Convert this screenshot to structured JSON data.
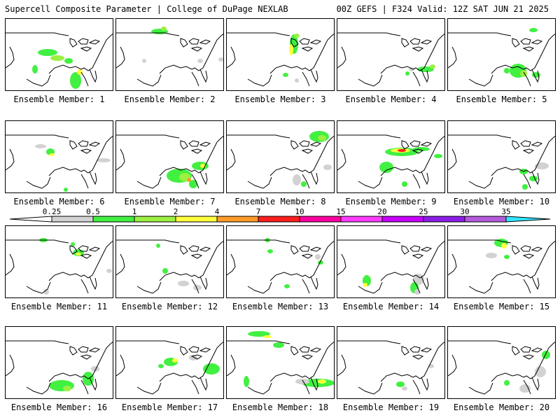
{
  "header": {
    "left_title": "Supercell Composite Parameter | College of DuPage NEXLAB",
    "right_title": "00Z GEFS | F324 Valid: 12Z SAT JUN 21 2025"
  },
  "panels": [
    {
      "label": "Ensemble Member: 1"
    },
    {
      "label": "Ensemble Member: 2"
    },
    {
      "label": "Ensemble Member: 3"
    },
    {
      "label": "Ensemble Member: 4"
    },
    {
      "label": "Ensemble Member: 5"
    },
    {
      "label": "Ensemble Member: 6"
    },
    {
      "label": "Ensemble Member: 7"
    },
    {
      "label": "Ensemble Member: 8"
    },
    {
      "label": "Ensemble Member: 9"
    },
    {
      "label": "Ensemble Member: 10"
    },
    {
      "label": "Ensemble Member: 11"
    },
    {
      "label": "Ensemble Member: 12"
    },
    {
      "label": "Ensemble Member: 13"
    },
    {
      "label": "Ensemble Member: 14"
    },
    {
      "label": "Ensemble Member: 15"
    },
    {
      "label": "Ensemble Member: 16"
    },
    {
      "label": "Ensemble Member: 17"
    },
    {
      "label": "Ensemble Member: 18"
    },
    {
      "label": "Ensemble Member: 19"
    },
    {
      "label": "Ensemble Member: 20"
    }
  ],
  "colorbar": {
    "ticks": [
      "0.25",
      "0.5",
      "1",
      "2",
      "4",
      "7",
      "10",
      "15",
      "20",
      "25",
      "30",
      "35"
    ],
    "colors": [
      "#d2d2d2",
      "#41f041",
      "#9bf041",
      "#ffff3c",
      "#ff9b28",
      "#ff1e1e",
      "#ff00a0",
      "#ff3cff",
      "#c800ff",
      "#8a1ee6",
      "#b45adc",
      "#32e6ff"
    ]
  }
}
